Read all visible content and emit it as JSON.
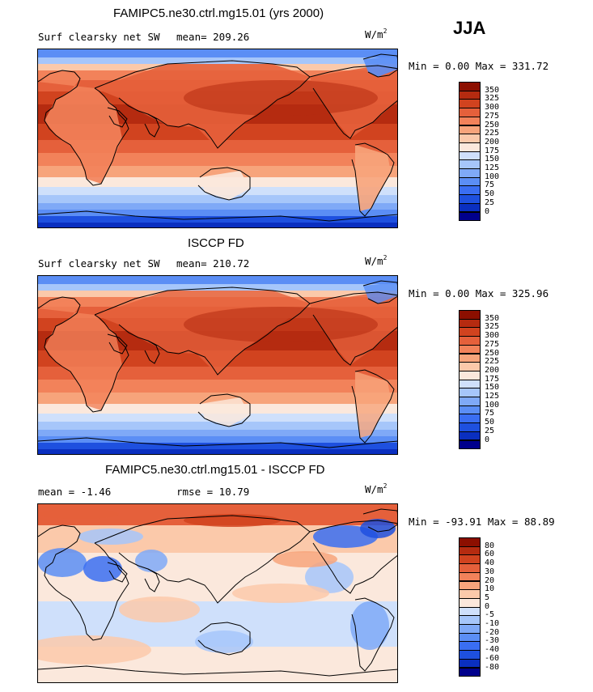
{
  "season": "JJA",
  "units": "W/m",
  "units_exp": "2",
  "palettes": {
    "abs": [
      "#00008c",
      "#0a2fc0",
      "#1e50df",
      "#3a6ef2",
      "#5b8ef5",
      "#7fa9f7",
      "#a6c6fa",
      "#cfe0fb",
      "#fbe8dc",
      "#fbc9aa",
      "#f7a47b",
      "#f2825a",
      "#e5603b",
      "#d1431f",
      "#b52b10",
      "#8c0f00"
    ],
    "diff": [
      "#00008c",
      "#0a2fc0",
      "#1e50df",
      "#3a6ef2",
      "#5b8ef5",
      "#7fa9f7",
      "#a6c6fa",
      "#cfe0fb",
      "#fbe8dc",
      "#fbc9aa",
      "#f7a47b",
      "#f2825a",
      "#e5603b",
      "#d1431f",
      "#b52b10",
      "#8c0f00"
    ]
  },
  "panels": [
    {
      "title": "FAMIPC5.ne30.ctrl.mg15.01 (yrs 2000)",
      "left_label": "Surf clearsky net SW",
      "mean_text": "mean= 209.26",
      "rmse_text": "",
      "minmax": "Min =    0.00 Max = 331.72",
      "kind": "abs",
      "levels": [
        "350",
        "325",
        "300",
        "275",
        "250",
        "225",
        "200",
        "175",
        "150",
        "125",
        "100",
        "75",
        "50",
        "25",
        "0"
      ]
    },
    {
      "title": "ISCCP FD",
      "left_label": "Surf clearsky net SW",
      "mean_text": "mean= 210.72",
      "rmse_text": "",
      "minmax": "Min =    0.00 Max = 325.96",
      "kind": "abs",
      "levels": [
        "350",
        "325",
        "300",
        "275",
        "250",
        "225",
        "200",
        "175",
        "150",
        "125",
        "100",
        "75",
        "50",
        "25",
        "0"
      ]
    },
    {
      "title": "FAMIPC5.ne30.ctrl.mg15.01 - ISCCP FD",
      "left_label": "mean =  -1.46",
      "mean_text": "rmse =  10.79",
      "rmse_text": "",
      "minmax": "Min = -93.91 Max =  88.89",
      "kind": "diff",
      "levels": [
        "80",
        "60",
        "40",
        "30",
        "20",
        "10",
        "5",
        "0",
        "-5",
        "-10",
        "-20",
        "-30",
        "-40",
        "-60",
        "-80"
      ]
    }
  ]
}
